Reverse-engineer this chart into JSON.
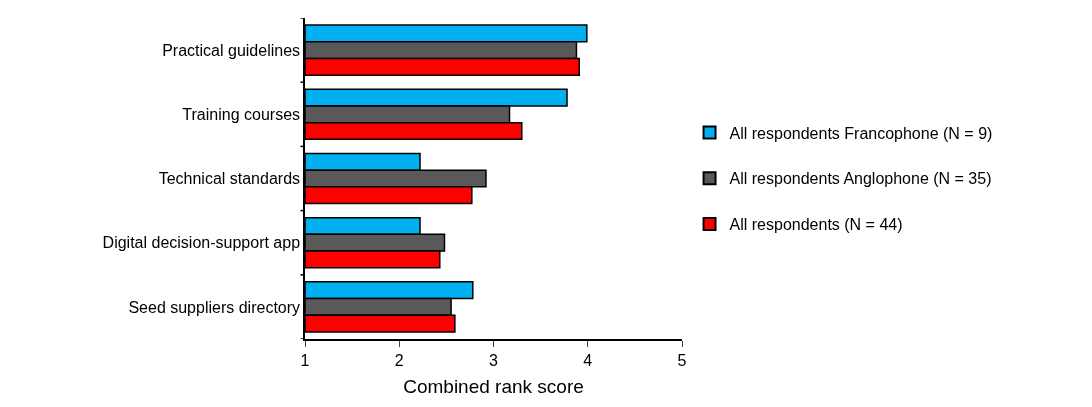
{
  "chart_data": {
    "type": "bar",
    "orientation": "horizontal",
    "xlabel": "Combined rank score",
    "categories": [
      "Practical guidelines",
      "Training courses",
      "Technical standards",
      "Digital decision-support app",
      "Seed suppliers directory"
    ],
    "series": [
      {
        "name": "All respondents Francophone (N = 9)",
        "color": "#00b0f0",
        "values": [
          3.99,
          3.78,
          2.22,
          2.22,
          2.78
        ]
      },
      {
        "name": "All respondents Anglophone (N = 35)",
        "color": "#595959",
        "values": [
          3.88,
          3.17,
          2.92,
          2.48,
          2.55
        ]
      },
      {
        "name": "All respondents (N = 44)",
        "color": "#ff0000",
        "values": [
          3.91,
          3.3,
          2.77,
          2.43,
          2.59
        ]
      }
    ],
    "xlim": [
      1,
      5
    ],
    "xticks": [
      1,
      2,
      3,
      4,
      5
    ],
    "legend": "right"
  }
}
